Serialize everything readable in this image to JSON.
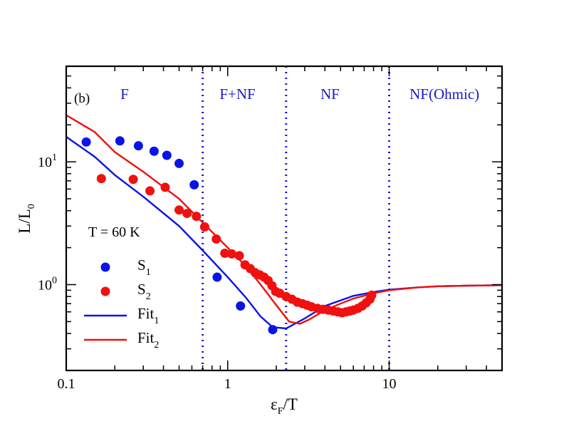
{
  "chart_data": {
    "type": "scatter",
    "panel_label": "(b)",
    "annotation": "T = 60 K",
    "xscale": "log",
    "yscale": "log",
    "xlim": [
      0.1,
      50
    ],
    "ylim": [
      0.2,
      60
    ],
    "xlabel": {
      "main": "ε",
      "sub": "F",
      "rest": "/T"
    },
    "ylabel": {
      "main": "L/L",
      "sub": "0"
    },
    "xticks": [
      {
        "value": 0.1,
        "label": "0.1"
      },
      {
        "value": 1,
        "label": "1"
      },
      {
        "value": 10,
        "label": "10"
      }
    ],
    "yticks": [
      {
        "value": 1,
        "base": "10",
        "exp": "0"
      },
      {
        "value": 10,
        "base": "10",
        "exp": "1"
      }
    ],
    "regions": [
      {
        "label": "F",
        "x": 0.23
      },
      {
        "label": "F+NF",
        "x": 1.15
      },
      {
        "label": "NF",
        "x": 4.3
      },
      {
        "label": "NF(Ohmic)",
        "x": 22
      }
    ],
    "boundaries": [
      0.7,
      2.3,
      10
    ],
    "colors": {
      "S1": "#0a14e6",
      "S2": "#f01010",
      "boundary": "#1a1ac8"
    },
    "legend": [
      {
        "main": "S",
        "sub": "1",
        "kind": "marker",
        "color": "#0a14e6"
      },
      {
        "main": "S",
        "sub": "2",
        "kind": "marker",
        "color": "#f01010"
      },
      {
        "main": "Fit",
        "sub": "1",
        "kind": "line",
        "color": "#0a14e6"
      },
      {
        "main": "Fit",
        "sub": "2",
        "kind": "line",
        "color": "#f01010"
      }
    ],
    "series": [
      {
        "name": "S1",
        "kind": "scatter",
        "color": "#0a14e6",
        "x": [
          0.133,
          0.215,
          0.28,
          0.35,
          0.42,
          0.5,
          0.62,
          0.86,
          1.2,
          1.9
        ],
        "y": [
          14.5,
          14.8,
          13.5,
          12.2,
          11.3,
          9.7,
          6.5,
          1.15,
          0.67,
          0.43
        ]
      },
      {
        "name": "S2",
        "kind": "scatter",
        "color": "#f01010",
        "x": [
          0.165,
          0.26,
          0.33,
          0.41,
          0.5,
          0.56,
          0.64,
          0.72,
          0.85,
          0.96,
          1.06,
          1.18,
          1.28,
          1.38,
          1.48,
          1.58,
          1.68,
          1.78,
          1.88,
          1.98,
          2.1,
          2.3,
          2.5,
          2.7,
          2.9,
          3.1,
          3.3,
          3.6,
          3.9,
          4.2,
          4.5,
          4.8,
          5.1,
          5.4,
          5.7,
          6.0,
          6.4,
          6.8,
          7.2,
          7.6,
          7.8
        ],
        "y": [
          7.3,
          7.2,
          5.8,
          6.2,
          4.05,
          3.8,
          3.6,
          2.95,
          2.35,
          1.8,
          1.78,
          1.72,
          1.45,
          1.35,
          1.25,
          1.2,
          1.15,
          1.08,
          0.98,
          0.88,
          0.85,
          0.8,
          0.76,
          0.72,
          0.7,
          0.68,
          0.66,
          0.64,
          0.63,
          0.62,
          0.61,
          0.6,
          0.59,
          0.6,
          0.61,
          0.62,
          0.64,
          0.67,
          0.71,
          0.76,
          0.82
        ]
      },
      {
        "name": "Fit1",
        "kind": "line",
        "color": "#0a14e6",
        "x": [
          0.1,
          0.15,
          0.2,
          0.3,
          0.5,
          0.7,
          1.0,
          1.3,
          1.6,
          1.9,
          2.3,
          3.0,
          4.0,
          6.0,
          8.0,
          10,
          15,
          20,
          30,
          50
        ],
        "y": [
          16.0,
          11.0,
          7.8,
          5.2,
          3.0,
          1.9,
          1.15,
          0.78,
          0.55,
          0.45,
          0.44,
          0.53,
          0.67,
          0.81,
          0.87,
          0.91,
          0.95,
          0.97,
          0.98,
          0.99
        ]
      },
      {
        "name": "Fit2",
        "kind": "line",
        "color": "#f01010",
        "x": [
          0.1,
          0.15,
          0.2,
          0.3,
          0.5,
          0.7,
          1.0,
          1.3,
          1.6,
          2.0,
          2.4,
          2.8,
          3.2,
          4.0,
          5.0,
          6.0,
          8.0,
          10,
          15,
          20,
          30,
          50
        ],
        "y": [
          24.0,
          17.5,
          12.0,
          8.3,
          5.0,
          3.2,
          2.0,
          1.4,
          1.0,
          0.68,
          0.5,
          0.48,
          0.52,
          0.62,
          0.7,
          0.77,
          0.85,
          0.9,
          0.95,
          0.97,
          0.98,
          0.99
        ]
      }
    ]
  }
}
